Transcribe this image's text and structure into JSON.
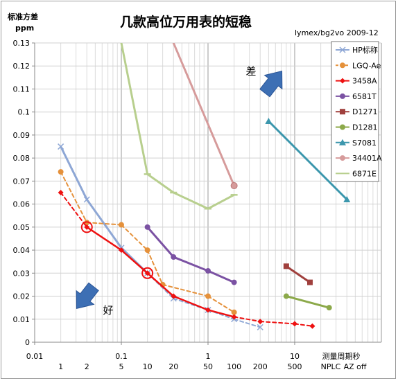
{
  "chart_data": {
    "type": "line",
    "title": "几款高位万用表的短稳",
    "subtitle": "lymex/bg2vo 2009-12",
    "ylabel": "标准方差",
    "ylabel_unit": "ppm",
    "xlabel": "测量周期秒",
    "x_scale": "log",
    "xlim": [
      0.01,
      100
    ],
    "ylim": [
      0,
      0.13
    ],
    "y_ticks": [
      "0",
      "0.01",
      "0.02",
      "0.03",
      "0.04",
      "0.05",
      "0.06",
      "0.07",
      "0.08",
      "0.09",
      "0.1",
      "0.11",
      "0.12",
      "0.13"
    ],
    "x_ticks": [
      {
        "value": 0.01,
        "label": "0.01"
      },
      {
        "value": 0.1,
        "label": "0.1"
      },
      {
        "value": 1,
        "label": "1"
      },
      {
        "value": 10,
        "label": "10"
      }
    ],
    "nplc_label": "NPLC",
    "nplc_ticks": [
      {
        "x": 0.02,
        "label": "1"
      },
      {
        "x": 0.04,
        "label": "2"
      },
      {
        "x": 0.1,
        "label": "5"
      },
      {
        "x": 0.2,
        "label": "10"
      },
      {
        "x": 0.4,
        "label": "20"
      },
      {
        "x": 1,
        "label": "50"
      },
      {
        "x": 2,
        "label": "100"
      },
      {
        "x": 4,
        "label": "200"
      },
      {
        "x": 10,
        "label": "500"
      }
    ],
    "az_label": "AZ  off",
    "legend_position": "top-right",
    "annotations": [
      {
        "text": "差",
        "x": 5,
        "y": 0.118
      },
      {
        "text": "好",
        "x": 0.038,
        "y": 0.014
      }
    ],
    "series": [
      {
        "name": "HP标称",
        "color": "#8ea7d5",
        "marker": "x",
        "points": [
          [
            0.02,
            0.085
          ],
          [
            0.04,
            0.062
          ],
          [
            0.1,
            0.041
          ],
          [
            0.2,
            0.03
          ],
          [
            0.4,
            0.019
          ],
          [
            1,
            0.014
          ],
          [
            2,
            0.01
          ],
          [
            4,
            0.0065
          ]
        ],
        "dashed_from": 4
      },
      {
        "name": "LGQ-Ae",
        "color": "#e5913b",
        "marker": "circle",
        "dashed": true,
        "points": [
          [
            0.02,
            0.074
          ],
          [
            0.04,
            0.052
          ],
          [
            0.1,
            0.051
          ],
          [
            0.2,
            0.04
          ],
          [
            0.3,
            0.025
          ],
          [
            1,
            0.02
          ],
          [
            2,
            0.013
          ]
        ]
      },
      {
        "name": "3458A",
        "color": "#ee1111",
        "marker": "diamond",
        "points": [
          [
            0.02,
            0.065
          ],
          [
            0.04,
            0.05
          ],
          [
            0.1,
            0.04
          ],
          [
            0.2,
            0.03
          ],
          [
            0.4,
            0.02
          ],
          [
            1,
            0.014
          ],
          [
            2,
            0.011
          ],
          [
            4,
            0.009
          ],
          [
            10,
            0.008
          ],
          [
            16,
            0.007
          ]
        ],
        "dashed_segments": [
          0,
          6,
          7,
          8
        ],
        "highlights": [
          [
            0.04,
            0.05
          ],
          [
            0.2,
            0.03
          ]
        ]
      },
      {
        "name": "6581T",
        "color": "#7b52a3",
        "marker": "circle",
        "points": [
          [
            0.2,
            0.05
          ],
          [
            0.4,
            0.037
          ],
          [
            1,
            0.031
          ],
          [
            2,
            0.026
          ]
        ]
      },
      {
        "name": "D1271",
        "color": "#a0403d",
        "marker": "square",
        "points": [
          [
            8,
            0.033
          ],
          [
            15,
            0.026
          ]
        ]
      },
      {
        "name": "D1281",
        "color": "#8ca94a",
        "marker": "circle",
        "points": [
          [
            8,
            0.02
          ],
          [
            25,
            0.015
          ]
        ]
      },
      {
        "name": "S7081",
        "color": "#3c97ad",
        "marker": "triangle",
        "points": [
          [
            5,
            0.096
          ],
          [
            40,
            0.062
          ]
        ]
      },
      {
        "name": "34401A",
        "color": "#d69b9b",
        "marker": "circle",
        "points": [
          [
            0.4,
            0.13
          ],
          [
            2,
            0.068
          ]
        ],
        "clipped_start": true
      },
      {
        "name": "6871E",
        "color": "#b8cf8e",
        "marker": "dash",
        "points": [
          [
            0.1,
            0.13
          ],
          [
            0.2,
            0.073
          ],
          [
            0.4,
            0.065
          ],
          [
            1,
            0.058
          ],
          [
            2,
            0.064
          ]
        ]
      }
    ]
  }
}
